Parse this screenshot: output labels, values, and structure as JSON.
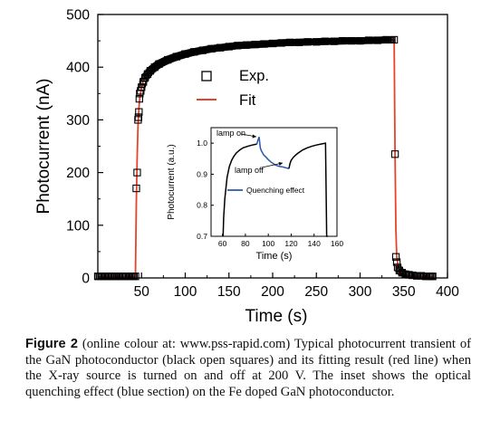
{
  "chart_data": [
    {
      "type": "scatter",
      "role": "main",
      "xlabel": "Time (s)",
      "ylabel": "Photocurrent (nA)",
      "xlim": [
        0,
        400
      ],
      "ylim": [
        0,
        500
      ],
      "xticks": [
        50,
        100,
        150,
        200,
        250,
        300,
        350,
        400
      ],
      "yticks": [
        0,
        100,
        200,
        300,
        400,
        500
      ],
      "grid": false,
      "legend_position": "center-right",
      "legend": [
        "Exp.",
        "Fit"
      ],
      "colors": {
        "exp": "#000000",
        "fit": "#e8432a"
      },
      "series": [
        {
          "name": "Exp.",
          "marker": "open-square",
          "x": [
            0,
            4,
            8,
            12,
            16,
            20,
            24,
            28,
            32,
            36,
            40,
            43,
            44,
            45,
            46,
            46.5,
            47,
            47.5,
            48,
            49,
            50,
            52,
            54,
            57,
            60,
            65,
            70,
            80,
            90,
            100,
            110,
            120,
            130,
            140,
            150,
            160,
            170,
            180,
            190,
            200,
            210,
            220,
            230,
            240,
            250,
            260,
            270,
            280,
            290,
            300,
            310,
            320,
            330,
            339,
            340,
            341,
            342,
            343,
            345,
            348,
            352,
            356,
            360,
            365,
            370,
            375,
            380,
            383
          ],
          "y": [
            3,
            3,
            3,
            3,
            3,
            3,
            3,
            3,
            3,
            3,
            3,
            3,
            170,
            200,
            300,
            305,
            315,
            340,
            350,
            355,
            362,
            372,
            380,
            387,
            393,
            400,
            406,
            414,
            420,
            425,
            429,
            432,
            435,
            437,
            439,
            441,
            442,
            443,
            444,
            445,
            446,
            447,
            447,
            448,
            448,
            449,
            449,
            450,
            450,
            450,
            451,
            451,
            452,
            452,
            235,
            40,
            30,
            20,
            14,
            10,
            7,
            6,
            5,
            4,
            4,
            3,
            3,
            3
          ]
        },
        {
          "name": "Fit",
          "marker": "line",
          "x": [
            0,
            43,
            44,
            45,
            46,
            47,
            48,
            50,
            52,
            55,
            60,
            65,
            70,
            80,
            90,
            100,
            120,
            140,
            160,
            180,
            200,
            230,
            260,
            290,
            320,
            339,
            340,
            341,
            342,
            344,
            346,
            350,
            355,
            360,
            370,
            383
          ],
          "y": [
            2,
            2,
            140,
            230,
            290,
            322,
            342,
            362,
            374,
            384,
            394,
            401,
            406,
            414,
            420,
            425,
            432,
            437,
            441,
            443,
            445,
            447,
            449,
            450,
            451,
            452,
            235,
            90,
            40,
            18,
            10,
            6,
            4,
            3,
            2,
            2
          ]
        }
      ]
    },
    {
      "type": "line",
      "role": "inset",
      "xlabel": "Time (s)",
      "ylabel": "Photocurrent (a.u.)",
      "xlim": [
        50,
        160
      ],
      "ylim": [
        0.7,
        1.05
      ],
      "xticks": [
        60,
        80,
        100,
        120,
        140,
        160
      ],
      "yticks": [
        0.7,
        0.8,
        0.9,
        1.0
      ],
      "grid": false,
      "legend_position": "bottom-center",
      "legend": [
        "Quenching effect"
      ],
      "colors": {
        "black": "#000000",
        "blue": "#2a58a8"
      },
      "annotations": [
        "lamp on",
        "lamp off"
      ],
      "series": [
        {
          "name": "",
          "color": "#000000",
          "x": [
            60.5,
            61,
            62,
            64,
            66,
            68,
            70,
            72,
            75,
            78,
            82,
            86,
            90
          ],
          "y": [
            0.7,
            0.76,
            0.82,
            0.89,
            0.925,
            0.945,
            0.958,
            0.968,
            0.978,
            0.985,
            0.99,
            0.994,
            0.997
          ]
        },
        {
          "name": "Quenching effect",
          "color": "#2a58a8",
          "x": [
            90,
            91,
            92,
            93,
            94,
            96,
            98,
            100,
            102,
            104,
            106,
            108,
            110,
            112,
            114,
            116,
            118
          ],
          "y": [
            0.997,
            1.01,
            1.02,
            0.985,
            0.975,
            0.962,
            0.955,
            0.947,
            0.94,
            0.935,
            0.93,
            0.927,
            0.925,
            0.924,
            0.922,
            0.92,
            0.918
          ]
        },
        {
          "name": "",
          "color": "#000000",
          "x": [
            118,
            119,
            120,
            122,
            124,
            126,
            128,
            130,
            134,
            138,
            142,
            146,
            150,
            150.5,
            151,
            152
          ],
          "y": [
            0.918,
            0.935,
            0.945,
            0.955,
            0.962,
            0.968,
            0.973,
            0.978,
            0.985,
            0.99,
            0.994,
            0.997,
            1.0,
            0.85,
            0.7,
            0.7
          ]
        }
      ]
    }
  ],
  "caption": {
    "label": "Figure 2",
    "text": " (online colour at: www.pss-rapid.com) Typical photocurrent transient of the GaN photoconductor (black open squares) and its fitting result (red line) when the X-ray source is turned on and off at 200 V. The inset shows the optical quenching effect (blue section) on the Fe doped GaN photoconductor."
  }
}
